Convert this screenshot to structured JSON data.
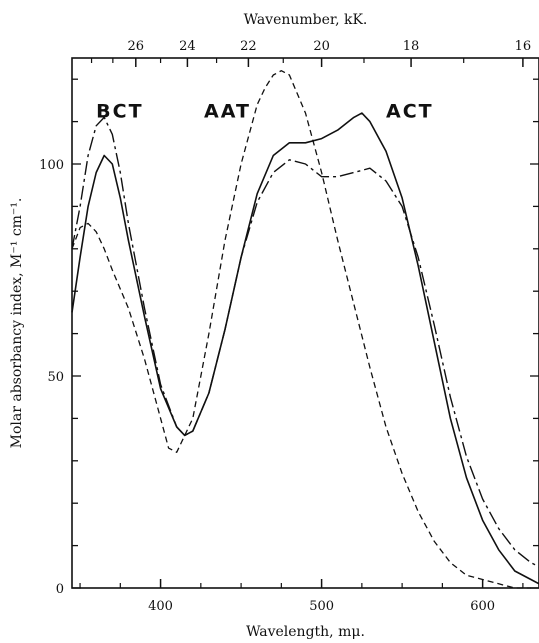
{
  "chart_data": {
    "type": "line",
    "xlabel": "Wavelength, mμ.",
    "ylabel": "Molar absorbancy index, M⁻¹ cm⁻¹.",
    "top_xlabel": "Wavenumber, kK.",
    "xlim": [
      345,
      635
    ],
    "ylim": [
      0,
      125
    ],
    "x_ticks": [
      400,
      500,
      600
    ],
    "y_ticks": [
      0,
      50,
      100
    ],
    "top_ticks": [
      26,
      24,
      22,
      20,
      18,
      16
    ],
    "grid": false,
    "annotations": [
      "BCT",
      "AAT",
      "ACT"
    ],
    "series": [
      {
        "name": "ACT",
        "style": "solid",
        "x": [
          345,
          350,
          355,
          360,
          365,
          370,
          375,
          380,
          390,
          400,
          410,
          415,
          420,
          430,
          440,
          450,
          460,
          470,
          480,
          490,
          500,
          510,
          520,
          525,
          530,
          540,
          550,
          560,
          570,
          580,
          590,
          600,
          610,
          620,
          630,
          635
        ],
        "y": [
          65,
          78,
          90,
          98,
          102,
          100,
          92,
          82,
          64,
          47,
          38,
          36,
          37,
          46,
          61,
          78,
          93,
          102,
          105,
          105,
          106,
          108,
          111,
          112,
          110,
          103,
          92,
          76,
          58,
          40,
          26,
          16,
          9,
          4,
          2,
          1
        ]
      },
      {
        "name": "BCT",
        "style": "dashdot",
        "x": [
          345,
          350,
          355,
          360,
          365,
          370,
          375,
          380,
          390,
          400,
          410,
          415,
          420,
          430,
          440,
          450,
          460,
          470,
          480,
          490,
          500,
          510,
          520,
          530,
          540,
          550,
          560,
          570,
          580,
          590,
          600,
          610,
          620,
          630,
          635
        ],
        "y": [
          80,
          90,
          102,
          109,
          111,
          107,
          98,
          86,
          66,
          48,
          38,
          36,
          37,
          46,
          61,
          78,
          91,
          98,
          101,
          100,
          97,
          97,
          98,
          99,
          96,
          90,
          78,
          62,
          45,
          31,
          21,
          14,
          9,
          6,
          5
        ]
      },
      {
        "name": "AAT",
        "style": "dashed",
        "x": [
          345,
          350,
          355,
          360,
          365,
          370,
          380,
          390,
          400,
          405,
          410,
          420,
          430,
          440,
          450,
          460,
          465,
          470,
          475,
          480,
          490,
          500,
          510,
          520,
          530,
          540,
          550,
          560,
          570,
          580,
          590,
          600,
          610,
          620,
          630
        ],
        "y": [
          80,
          85,
          86,
          84,
          80,
          75,
          66,
          54,
          40,
          33,
          32,
          40,
          60,
          82,
          100,
          114,
          118,
          121,
          122,
          121,
          112,
          98,
          82,
          67,
          52,
          38,
          27,
          18,
          11,
          6,
          3,
          2,
          1,
          0,
          0
        ]
      }
    ]
  }
}
